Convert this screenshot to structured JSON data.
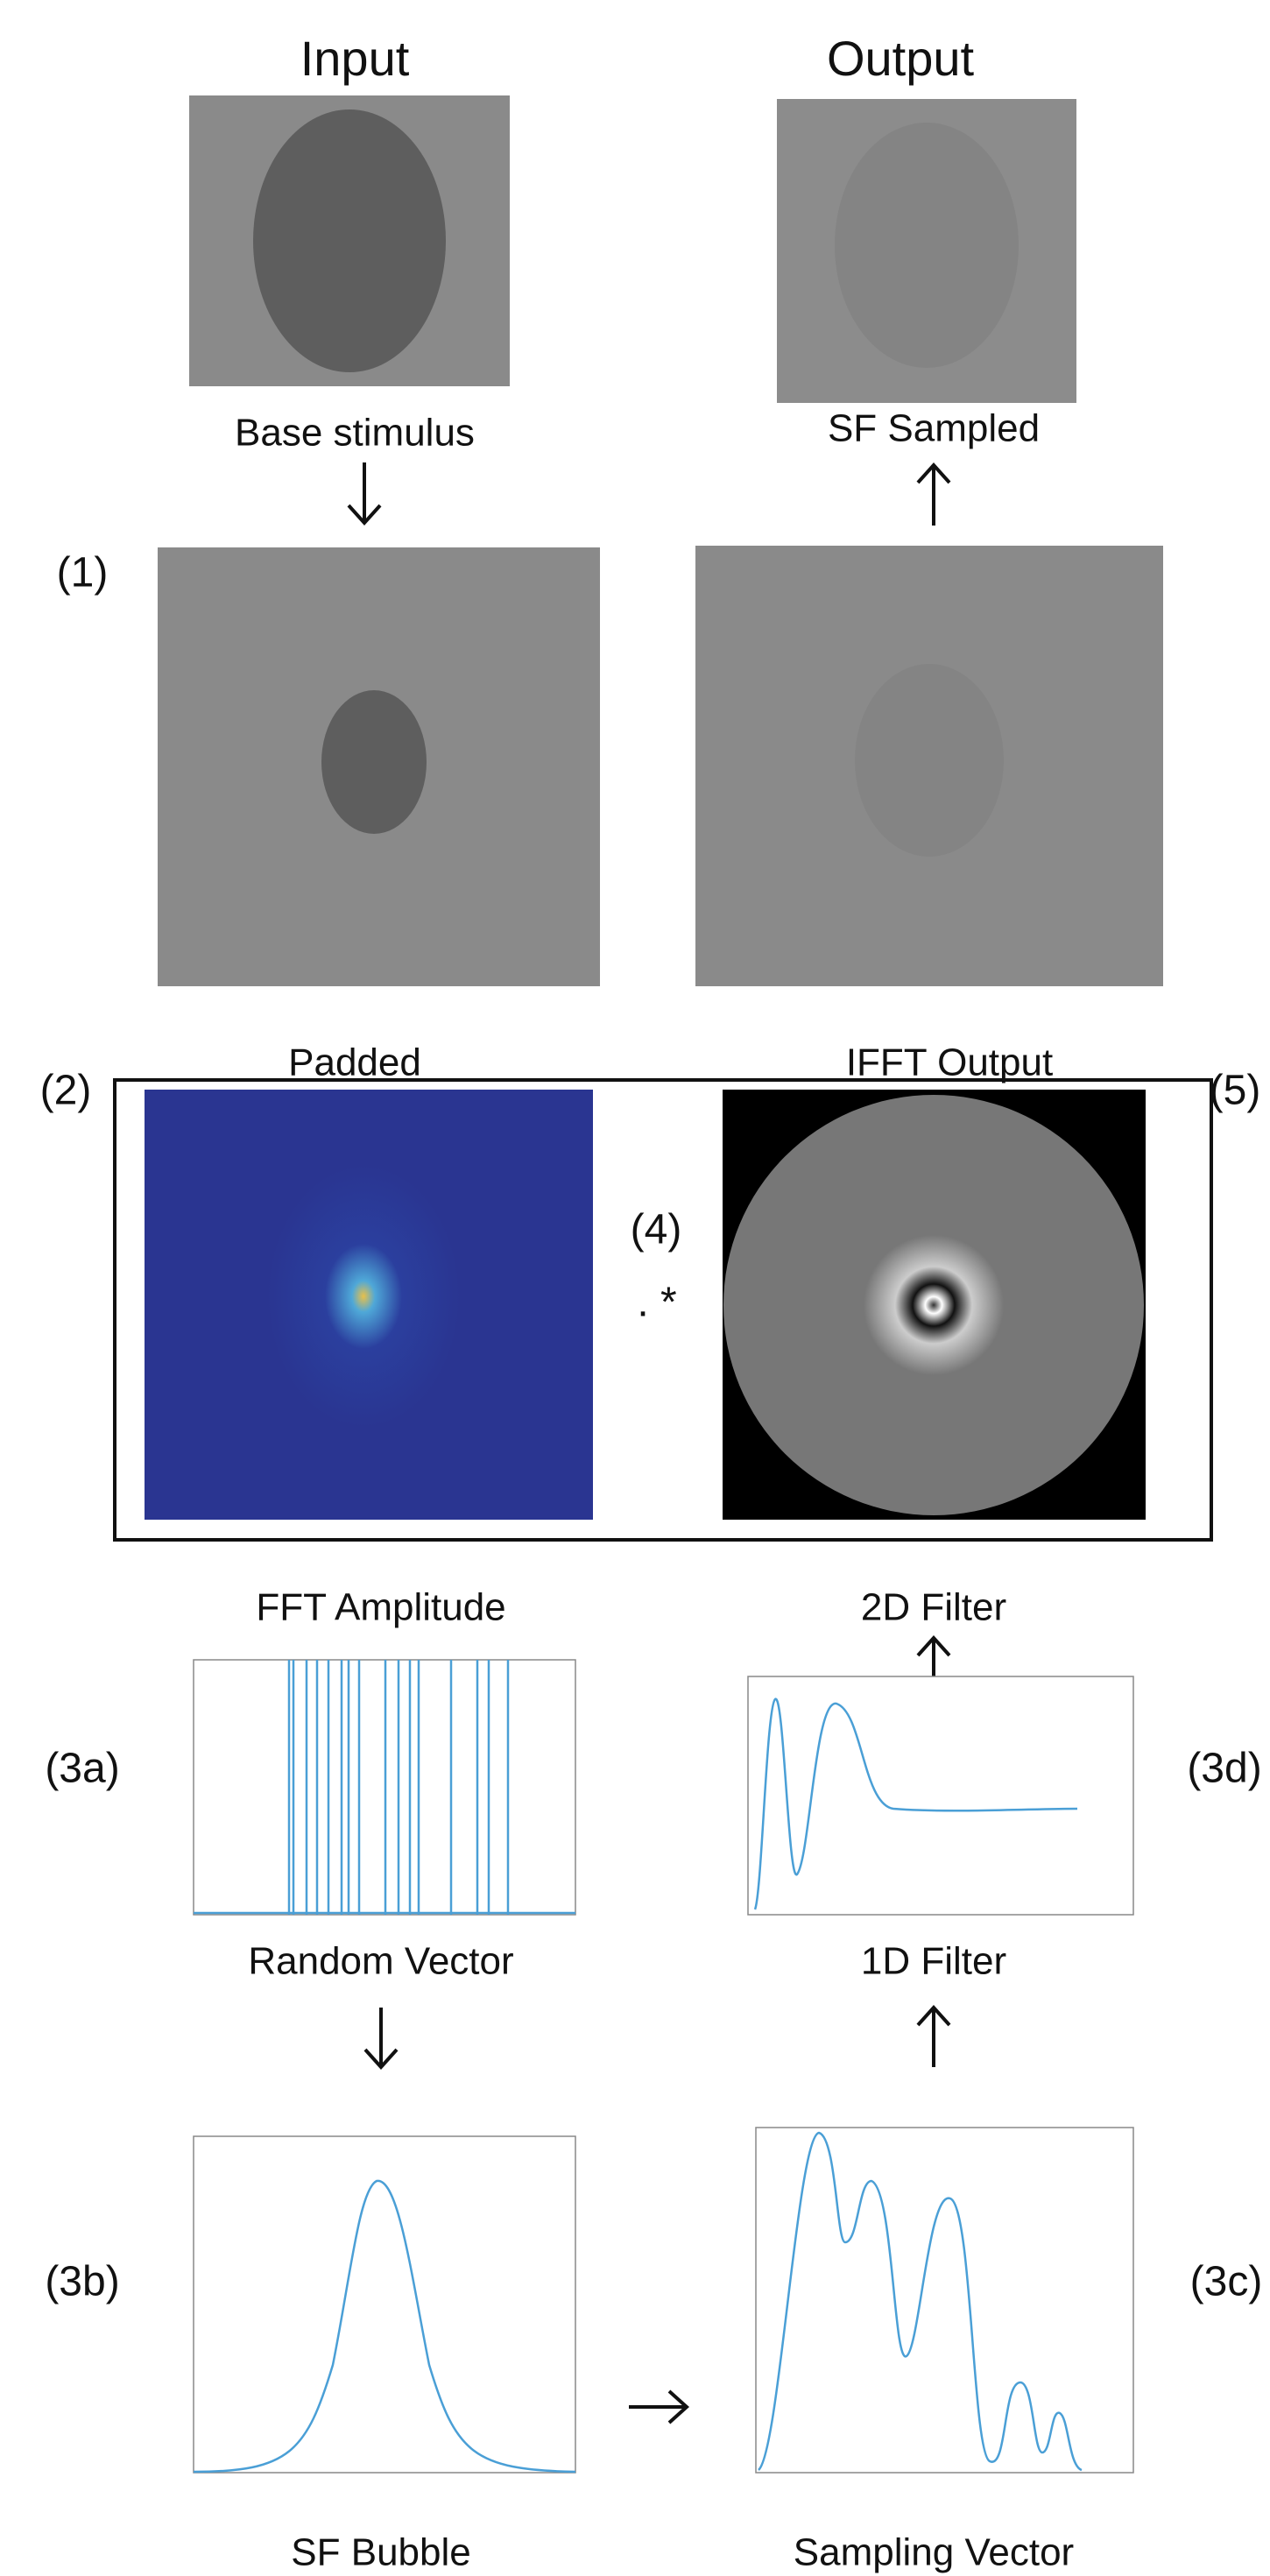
{
  "columns": {
    "input": "Input",
    "output": "Output"
  },
  "images": {
    "base": "Base stimulus",
    "sf_sampled": "SF Sampled",
    "padded": "Padded",
    "ifft": "IFFT Output",
    "fft": "FFT Amplitude",
    "filter2d": "2D Filter",
    "random_vector": "Random Vector",
    "filter1d": "1D Filter",
    "bubble": "SF Bubble",
    "sampling": "Sampling Vector"
  },
  "steps": {
    "s1": "(1)",
    "s2": "(2)",
    "s3a": "(3a)",
    "s3b": "(3b)",
    "s3c": "(3c)",
    "s3d": "(3d)",
    "s4": "(4)",
    "s5": "(5)",
    "op": ". *"
  }
}
